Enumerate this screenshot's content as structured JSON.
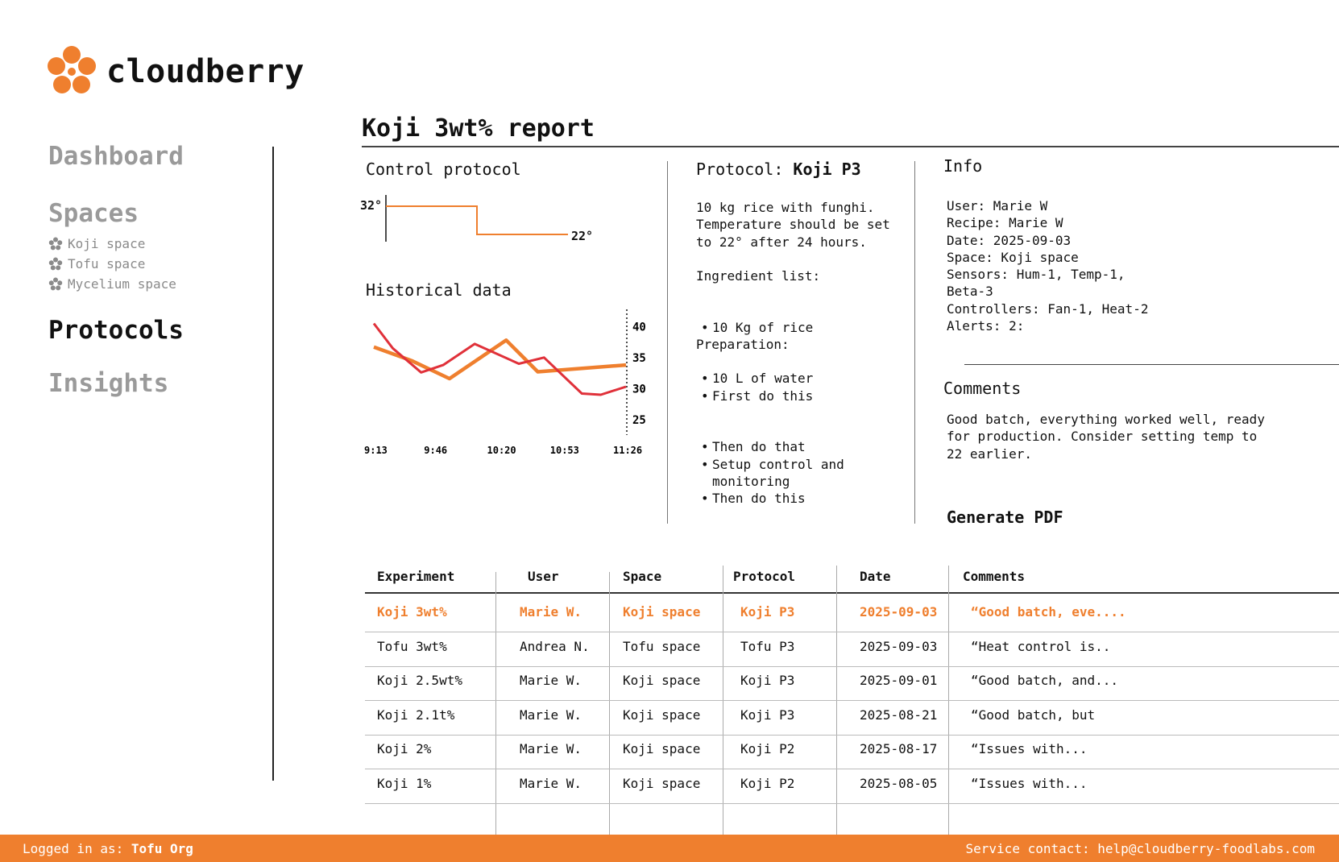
{
  "brand": {
    "name": "cloudberry",
    "logo_icon": "cloudberry-logo-icon",
    "accent": "#ef7f2e"
  },
  "sidebar": {
    "dashboard": "Dashboard",
    "spaces": "Spaces",
    "space_items": [
      "Koji space",
      "Tofu space",
      "Mycelium space"
    ],
    "protocols": "Protocols",
    "insights": "Insights"
  },
  "report": {
    "title": "Koji 3wt% report",
    "control_protocol": {
      "heading": "Control protocol",
      "start_temp": "32°",
      "end_temp": "22°"
    },
    "historical": {
      "heading": "Historical data"
    },
    "protocol": {
      "label": "Protocol:",
      "name": "Koji P3",
      "description": "10 kg rice with funghi.\nTemperature should be set\nto 22° after 24 hours.",
      "ingredients_label": "Ingredient list:",
      "ingredients": [
        "10 Kg of rice",
        "10 L of water"
      ],
      "preparation_label": "Preparation:",
      "preparation": [
        "First do this",
        "Then do that",
        "Then do this"
      ],
      "extra": "Setup control and\nmonitoring"
    },
    "info": {
      "heading": "Info",
      "lines": "User: Marie W\nRecipe: Marie W\nDate: 2025-09-03\nSpace: Koji space\nSensors: Hum-1, Temp-1,\nBeta-3\nControllers: Fan-1, Heat-2\nAlerts: 2:"
    },
    "comments": {
      "heading": "Comments",
      "text": "Good batch, everything worked well, ready\nfor production. Consider setting temp to\n22 earlier."
    },
    "generate_pdf": "Generate PDF"
  },
  "chart_data": [
    {
      "type": "line",
      "title": "Control protocol",
      "x": [
        0,
        1,
        1,
        2
      ],
      "series": [
        {
          "values": [
            32,
            32,
            22,
            22
          ],
          "color": "#ef7f2e"
        }
      ],
      "labels": [
        "32°",
        "22°"
      ]
    },
    {
      "type": "line",
      "title": "Historical data",
      "x": [
        "9:13",
        "9:46",
        "10:20",
        "10:53",
        "11:26"
      ],
      "x_pos": [
        0,
        0.2,
        0.4,
        0.6,
        0.8,
        0.95,
        1.1,
        1.24,
        1.4,
        1.58,
        1.72,
        1.86,
        2.02,
        2.17,
        2.3,
        2.45,
        2.6,
        2.78,
        2.94,
        3.2,
        3.5,
        3.75,
        4.0
      ],
      "y_ticks": [
        40,
        35,
        30,
        25
      ],
      "ylim": [
        22.5,
        42
      ],
      "series": [
        {
          "color": "#e0313a",
          "x": [
            0,
            0.3,
            0.75,
            1.1,
            1.6,
            2.3,
            2.7,
            3.3,
            3.6,
            4.0
          ],
          "values": [
            40.5,
            36.5,
            32.6,
            33.8,
            37.2,
            34.0,
            35.0,
            29.2,
            29.0,
            30.3
          ]
        },
        {
          "color": "#ef7f2e",
          "x": [
            0,
            0.6,
            1.2,
            2.1,
            2.6,
            4.0
          ],
          "values": [
            36.7,
            34.5,
            31.6,
            37.8,
            32.7,
            33.8
          ]
        }
      ]
    }
  ],
  "table": {
    "headers": [
      "Experiment",
      "User",
      "Space",
      "Protocol",
      "Date",
      "Comments"
    ],
    "rows": [
      [
        "Koji 3wt%",
        "Marie W.",
        "Koji space",
        "Koji P3",
        "2025-09-03",
        "“Good batch, eve...."
      ],
      [
        "Tofu 3wt%",
        "Andrea N.",
        "Tofu space",
        "Tofu P3",
        "2025-09-03",
        "“Heat control is.."
      ],
      [
        "Koji 2.5wt%",
        "Marie W.",
        "Koji space",
        "Koji P3",
        "2025-09-01",
        "“Good batch, and..."
      ],
      [
        "Koji 2.1t%",
        "Marie W.",
        "Koji space",
        "Koji P3",
        "2025-08-21",
        "“Good batch, but"
      ],
      [
        "Koji 2%",
        "Marie W.",
        "Koji space",
        "Koji P2",
        "2025-08-17",
        "“Issues with..."
      ],
      [
        "Koji 1%",
        "Marie W.",
        "Koji space",
        "Koji P2",
        "2025-08-05",
        "“Issues with..."
      ]
    ]
  },
  "footer": {
    "logged_label": "Logged in as:",
    "org": "Tofu Org",
    "contact_label": "Service contact:",
    "email": "help@cloudberry-foodlabs.com"
  }
}
